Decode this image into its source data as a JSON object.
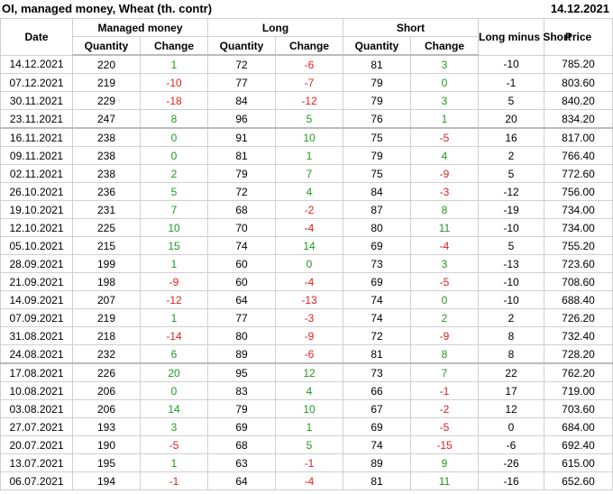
{
  "header": {
    "title": "OI, managed money, Wheat (th. contr)",
    "date": "14.12.2021"
  },
  "table": {
    "groups": [
      "Date",
      "Managed money",
      "Long",
      "Short",
      "Long minus Short",
      "Price"
    ],
    "subheaders": [
      "Quantity",
      "Change",
      "Quantity",
      "Change",
      "Quantity",
      "Change"
    ],
    "rows": [
      [
        "14.12.2021",
        "220",
        "1",
        "72",
        "-6",
        "81",
        "3",
        "-10",
        "785.20"
      ],
      [
        "07.12.2021",
        "219",
        "-10",
        "77",
        "-7",
        "79",
        "0",
        "-1",
        "803.60"
      ],
      [
        "30.11.2021",
        "229",
        "-18",
        "84",
        "-12",
        "79",
        "3",
        "5",
        "840.20"
      ],
      [
        "23.11.2021",
        "247",
        "8",
        "96",
        "5",
        "76",
        "1",
        "20",
        "834.20"
      ],
      [
        "16.11.2021",
        "238",
        "0",
        "91",
        "10",
        "75",
        "-5",
        "16",
        "817.00"
      ],
      [
        "09.11.2021",
        "238",
        "0",
        "81",
        "1",
        "79",
        "4",
        "2",
        "766.40"
      ],
      [
        "02.11.2021",
        "238",
        "2",
        "79",
        "7",
        "75",
        "-9",
        "5",
        "772.60"
      ],
      [
        "26.10.2021",
        "236",
        "5",
        "72",
        "4",
        "84",
        "-3",
        "-12",
        "756.00"
      ],
      [
        "19.10.2021",
        "231",
        "7",
        "68",
        "-2",
        "87",
        "8",
        "-19",
        "734.00"
      ],
      [
        "12.10.2021",
        "225",
        "10",
        "70",
        "-4",
        "80",
        "11",
        "-10",
        "734.00"
      ],
      [
        "05.10.2021",
        "215",
        "15",
        "74",
        "14",
        "69",
        "-4",
        "5",
        "755.20"
      ],
      [
        "28.09.2021",
        "199",
        "1",
        "60",
        "0",
        "73",
        "3",
        "-13",
        "723.60"
      ],
      [
        "21.09.2021",
        "198",
        "-9",
        "60",
        "-4",
        "69",
        "-5",
        "-10",
        "708.60"
      ],
      [
        "14.09.2021",
        "207",
        "-12",
        "64",
        "-13",
        "74",
        "0",
        "-10",
        "688.40"
      ],
      [
        "07.09.2021",
        "219",
        "1",
        "77",
        "-3",
        "74",
        "2",
        "2",
        "726.20"
      ],
      [
        "31.08.2021",
        "218",
        "-14",
        "80",
        "-9",
        "72",
        "-9",
        "8",
        "732.40"
      ],
      [
        "24.08.2021",
        "232",
        "6",
        "89",
        "-6",
        "81",
        "8",
        "8",
        "728.20"
      ],
      [
        "17.08.2021",
        "226",
        "20",
        "95",
        "12",
        "73",
        "7",
        "22",
        "762.20"
      ],
      [
        "10.08.2021",
        "206",
        "0",
        "83",
        "4",
        "66",
        "-1",
        "17",
        "719.00"
      ],
      [
        "03.08.2021",
        "206",
        "14",
        "79",
        "10",
        "67",
        "-2",
        "12",
        "703.60"
      ],
      [
        "27.07.2021",
        "193",
        "3",
        "69",
        "1",
        "69",
        "-5",
        "0",
        "684.00"
      ],
      [
        "20.07.2021",
        "190",
        "-5",
        "68",
        "5",
        "74",
        "-15",
        "-6",
        "692.40"
      ],
      [
        "13.07.2021",
        "195",
        "1",
        "63",
        "-1",
        "89",
        "9",
        "-26",
        "615.00"
      ],
      [
        "06.07.2021",
        "194",
        "-1",
        "64",
        "-4",
        "81",
        "11",
        "-16",
        "652.60"
      ]
    ]
  }
}
